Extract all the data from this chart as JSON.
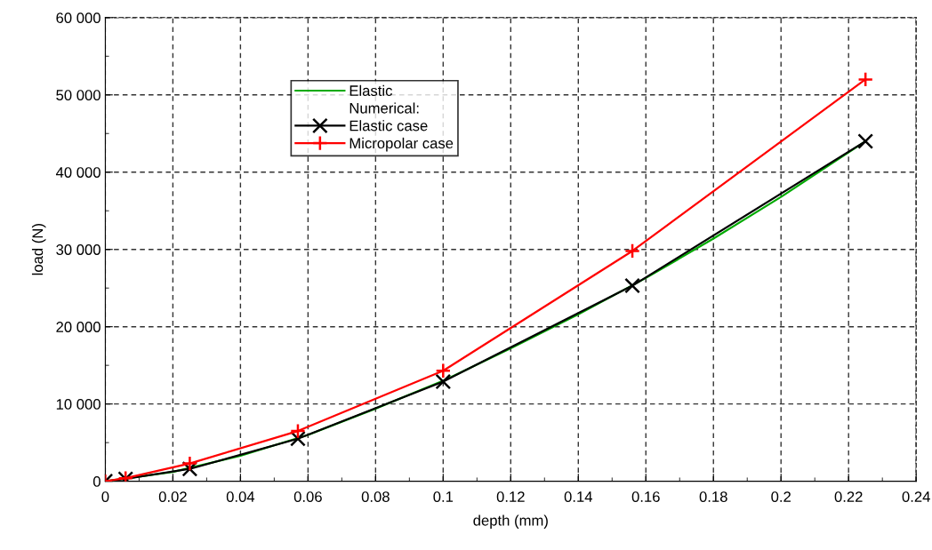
{
  "chart_data": {
    "type": "line",
    "xlabel": "depth (mm)",
    "ylabel": "load (N)",
    "xlim": [
      0,
      0.24
    ],
    "xticks": [
      0,
      0.02,
      0.04,
      0.06,
      0.08,
      0.1,
      0.12,
      0.14,
      0.16,
      0.18,
      0.2,
      0.22,
      0.24
    ],
    "ylim": [
      0,
      60000
    ],
    "yticks": [
      {
        "value": 0,
        "label": "0"
      },
      {
        "value": 10000,
        "label": "10 000"
      },
      {
        "value": 20000,
        "label": "20 000"
      },
      {
        "value": 30000,
        "label": "30 000"
      },
      {
        "value": 40000,
        "label": "40 000"
      },
      {
        "value": 50000,
        "label": "50 000"
      },
      {
        "value": 60000,
        "label": "60 000"
      }
    ],
    "grid": true,
    "legend": "top left",
    "annotations": [
      "Numerical:"
    ],
    "series": [
      {
        "name": "Elastic",
        "color": "#00aa00",
        "marker": "none",
        "x": [
          0,
          0.02,
          0.04,
          0.06,
          0.08,
          0.1,
          0.12,
          0.14,
          0.16,
          0.18,
          0.2,
          0.225
        ],
        "values": [
          0,
          1200,
          3300,
          6000,
          9400,
          13000,
          17200,
          21600,
          26300,
          31400,
          36800,
          44000
        ]
      },
      {
        "name": "Elastic case",
        "color": "#000000",
        "marker": "x",
        "x": [
          0,
          0.006,
          0.025,
          0.057,
          0.1,
          0.156,
          0.225
        ],
        "values": [
          0,
          300,
          1600,
          5500,
          12900,
          25300,
          44000
        ]
      },
      {
        "name": "Micropolar case",
        "color": "#ff0000",
        "marker": "cross",
        "x": [
          0,
          0.006,
          0.025,
          0.057,
          0.1,
          0.156,
          0.225
        ],
        "values": [
          0,
          400,
          2300,
          6500,
          14300,
          29800,
          52000
        ]
      }
    ]
  }
}
